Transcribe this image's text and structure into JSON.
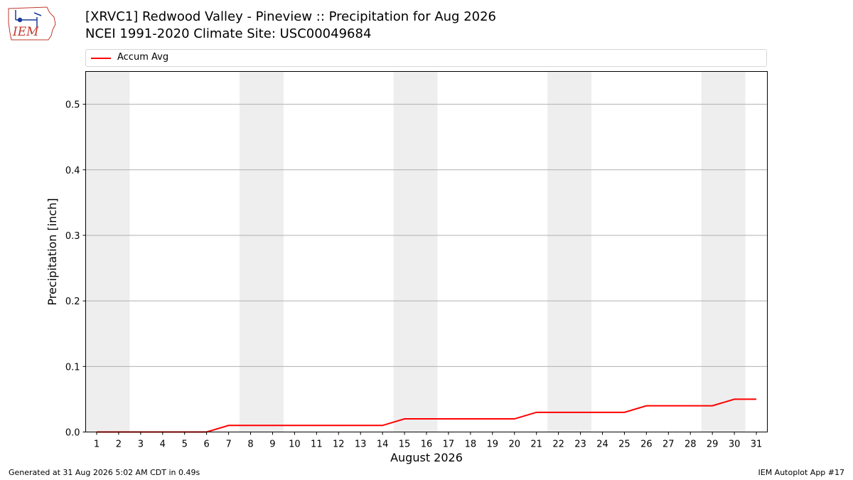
{
  "header": {
    "title_line1": "[XRVC1] Redwood Valley - Pineview :: Precipitation for Aug 2026",
    "title_line2": "NCEI 1991-2020 Climate Site: USC00049684",
    "logo_text": "IEM"
  },
  "legend": {
    "entries": [
      {
        "label": "Accum Avg",
        "color": "#ff0000"
      }
    ]
  },
  "chart_data": {
    "type": "line",
    "title": "[XRVC1] Redwood Valley - Pineview :: Precipitation for Aug 2026",
    "subtitle": "NCEI 1991-2020 Climate Site: USC00049684",
    "xlabel": "August 2026",
    "ylabel": "Precipitation [inch]",
    "x": [
      1,
      2,
      3,
      4,
      5,
      6,
      7,
      8,
      9,
      10,
      11,
      12,
      13,
      14,
      15,
      16,
      17,
      18,
      19,
      20,
      21,
      22,
      23,
      24,
      25,
      26,
      27,
      28,
      29,
      30,
      31
    ],
    "series": [
      {
        "name": "Accum Avg",
        "color": "#ff0000",
        "values": [
          0,
          0,
          0,
          0,
          0,
          0,
          0.01,
          0.01,
          0.01,
          0.01,
          0.01,
          0.01,
          0.01,
          0.01,
          0.02,
          0.02,
          0.02,
          0.02,
          0.02,
          0.02,
          0.03,
          0.03,
          0.03,
          0.03,
          0.03,
          0.04,
          0.04,
          0.04,
          0.04,
          0.05,
          0.05
        ]
      }
    ],
    "xlim": [
      0.5,
      31.5
    ],
    "ylim": [
      0,
      0.55
    ],
    "yticks": [
      0.0,
      0.1,
      0.2,
      0.3,
      0.4,
      0.5
    ],
    "ytick_labels": [
      "0.0",
      "0.1",
      "0.2",
      "0.3",
      "0.4",
      "0.5"
    ],
    "xtick_labels": [
      "1",
      "2",
      "3",
      "4",
      "5",
      "6",
      "7",
      "8",
      "9",
      "10",
      "11",
      "12",
      "13",
      "14",
      "15",
      "16",
      "17",
      "18",
      "19",
      "20",
      "21",
      "22",
      "23",
      "24",
      "25",
      "26",
      "27",
      "28",
      "29",
      "30",
      "31"
    ],
    "weekend_bands": [
      [
        1,
        2
      ],
      [
        8,
        9
      ],
      [
        15,
        16
      ],
      [
        22,
        23
      ],
      [
        29,
        30
      ]
    ],
    "band_color": "#eeeeee",
    "grid": "y",
    "legend_position": "top"
  },
  "footer": {
    "left": "Generated at 31 Aug 2026 5:02 AM CDT in 0.49s",
    "right": "IEM Autoplot App #17"
  }
}
